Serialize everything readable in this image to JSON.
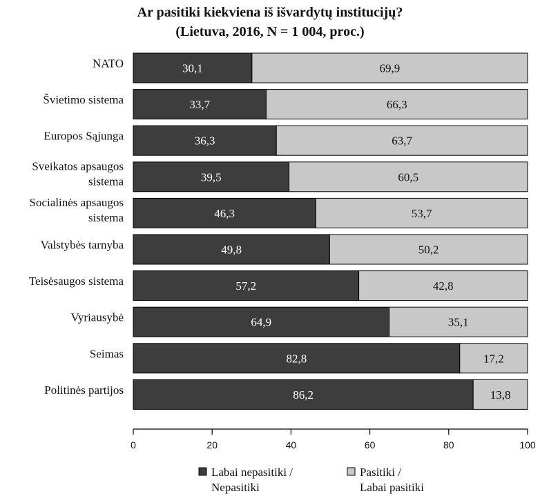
{
  "chart_data": {
    "type": "bar",
    "orientation": "horizontal",
    "stacked": true,
    "title": "Ar pasitiki kiekviena iš išvardytų institucijų?",
    "subtitle": "(Lietuva, 2016, N = 1 004, proc.)",
    "categories": [
      [
        "NATO"
      ],
      [
        "Švietimo sistema"
      ],
      [
        "Europos Sąjunga"
      ],
      [
        "Sveikatos apsaugos",
        "sistema"
      ],
      [
        "Socialinės apsaugos",
        "sistema"
      ],
      [
        "Valstybės tarnyba"
      ],
      [
        "Teisėsaugos sistema"
      ],
      [
        "Vyriausybė"
      ],
      [
        "Seimas"
      ],
      [
        "Politinės partijos"
      ]
    ],
    "series": [
      {
        "name": [
          "Labai nepasitiki /",
          "Nepasitiki"
        ],
        "color": "#3d3d3d",
        "values": [
          30.1,
          33.7,
          36.3,
          39.5,
          46.3,
          49.8,
          57.2,
          64.9,
          82.8,
          86.2
        ],
        "labels": [
          "30,1",
          "33,7",
          "36,3",
          "39,5",
          "46,3",
          "49,8",
          "57,2",
          "64,9",
          "82,8",
          "86,2"
        ]
      },
      {
        "name": [
          "Pasitiki /",
          "Labai pasitiki"
        ],
        "color": "#c8c8c8",
        "values": [
          69.9,
          66.3,
          63.7,
          60.5,
          53.7,
          50.2,
          42.8,
          35.1,
          17.2,
          13.8
        ],
        "labels": [
          "69,9",
          "66,3",
          "63,7",
          "60,5",
          "53,7",
          "50,2",
          "42,8",
          "35,1",
          "17,2",
          "13,8"
        ]
      }
    ],
    "xlim": [
      0,
      100
    ],
    "xticks": [
      0,
      20,
      40,
      60,
      80,
      100
    ],
    "xlabel": "",
    "ylabel": "",
    "grid": false,
    "legend": "bottom"
  }
}
